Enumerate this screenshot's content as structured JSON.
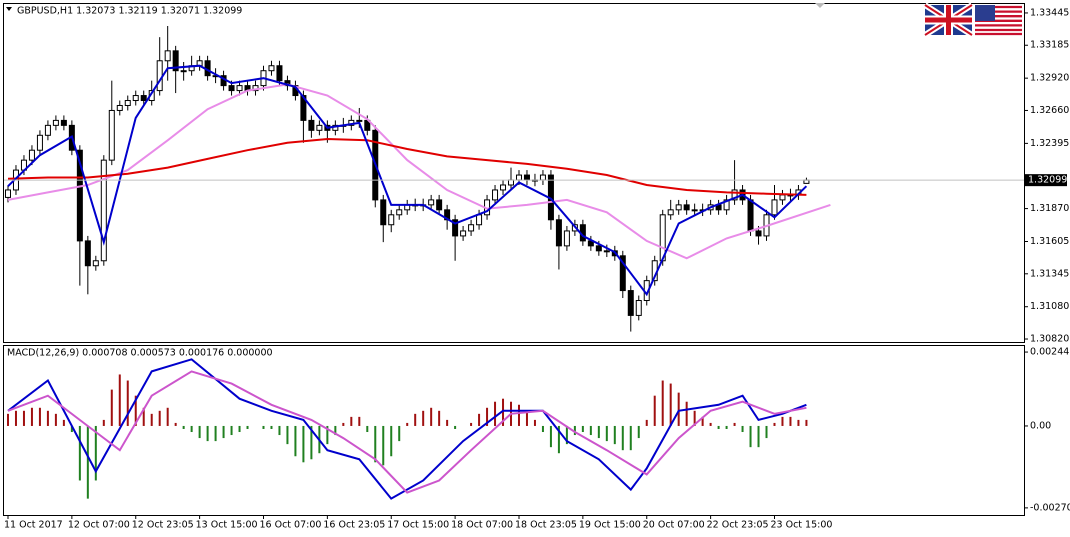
{
  "chart_data": [
    {
      "type": "candlestick",
      "title": "GBPUSD,H1  1.32073 1.32119 1.32071 1.32099",
      "categories": [
        "11 Oct 2017",
        null,
        null,
        null,
        null,
        null,
        null,
        null,
        "12 Oct 07:00",
        null,
        null,
        null,
        null,
        null,
        null,
        null,
        "12 Oct 23:05",
        null,
        null,
        null,
        null,
        null,
        null,
        null,
        "13 Oct 15:00",
        null,
        null,
        null,
        null,
        null,
        null,
        null,
        "16 Oct 07:00",
        null,
        null,
        null,
        null,
        null,
        null,
        null,
        "16 Oct 23:05",
        null,
        null,
        null,
        null,
        null,
        null,
        null,
        "17 Oct 15:00",
        null,
        null,
        null,
        null,
        null,
        null,
        null,
        "18 Oct 07:00",
        null,
        null,
        null,
        null,
        null,
        null,
        null,
        "18 Oct 23:05",
        null,
        null,
        null,
        null,
        null,
        null,
        null,
        "19 Oct 15:00",
        null,
        null,
        null,
        null,
        null,
        null,
        null,
        "20 Oct 07:00",
        null,
        null,
        null,
        null,
        null,
        null,
        null,
        "22 Oct 23:05",
        null,
        null,
        null,
        null,
        null,
        null,
        null,
        "23 Oct 15:00",
        null,
        null,
        null,
        null
      ],
      "open": [
        1.3196,
        1.3202,
        1.3218,
        1.3226,
        1.3234,
        1.3246,
        1.3254,
        1.3258,
        1.3254,
        1.3234,
        1.3161,
        1.3141,
        1.3145,
        1.3226,
        1.3266,
        1.327,
        1.3274,
        1.3278,
        1.3274,
        1.3282,
        1.3306,
        1.3314,
        1.3298,
        1.3298,
        1.3302,
        1.3306,
        1.3294,
        1.3294,
        1.3286,
        1.3282,
        1.3286,
        1.3282,
        1.3286,
        1.3298,
        1.3302,
        1.329,
        1.3286,
        1.3278,
        1.3258,
        1.325,
        1.3254,
        1.325,
        1.3254,
        1.3254,
        1.3258,
        1.3258,
        1.325,
        1.3194,
        1.3174,
        1.3182,
        1.3186,
        1.319,
        1.319,
        1.319,
        1.3194,
        1.3186,
        1.3178,
        1.3165,
        1.3169,
        1.3174,
        1.3182,
        1.3194,
        1.3202,
        1.3206,
        1.321,
        1.3214,
        1.321,
        1.321,
        1.3214,
        1.3178,
        1.3157,
        1.3169,
        1.3174,
        1.3161,
        1.3157,
        1.3153,
        1.3153,
        1.3149,
        1.3121,
        1.3101,
        1.3113,
        1.3129,
        1.3145,
        1.3182,
        1.3186,
        1.319,
        1.3186,
        1.3186,
        1.3186,
        1.319,
        1.3186,
        1.3194,
        1.3202,
        1.3194,
        1.3169,
        1.3165,
        1.3182,
        1.3194,
        1.3198,
        1.3198,
        1.32073
      ],
      "high": [
        1.3206,
        1.3222,
        1.323,
        1.3238,
        1.325,
        1.3258,
        1.3262,
        1.3262,
        1.3258,
        1.3238,
        1.3165,
        1.3149,
        1.323,
        1.329,
        1.3274,
        1.3278,
        1.3282,
        1.3282,
        1.329,
        1.3325,
        1.3334,
        1.3318,
        1.3305,
        1.331,
        1.331,
        1.331,
        1.33,
        1.3298,
        1.329,
        1.329,
        1.329,
        1.329,
        1.3302,
        1.3306,
        1.3306,
        1.3294,
        1.329,
        1.3282,
        1.3262,
        1.3258,
        1.3258,
        1.3258,
        1.326,
        1.3262,
        1.3268,
        1.3262,
        1.3254,
        1.3198,
        1.3186,
        1.319,
        1.3194,
        1.3195,
        1.3195,
        1.3198,
        1.3198,
        1.319,
        1.3182,
        1.3173,
        1.3178,
        1.3186,
        1.3198,
        1.3206,
        1.321,
        1.322,
        1.3218,
        1.3218,
        1.3215,
        1.3218,
        1.3218,
        1.3182,
        1.3173,
        1.3178,
        1.3178,
        1.3165,
        1.3161,
        1.3158,
        1.3157,
        1.3153,
        1.3125,
        1.3117,
        1.3133,
        1.3149,
        1.3186,
        1.3194,
        1.3194,
        1.3194,
        1.3191,
        1.3191,
        1.3194,
        1.3194,
        1.3198,
        1.3226,
        1.3206,
        1.3198,
        1.3173,
        1.3186,
        1.3206,
        1.3202,
        1.3203,
        1.3206,
        1.32119
      ],
      "low": [
        1.3192,
        1.3198,
        1.3214,
        1.3222,
        1.323,
        1.3242,
        1.325,
        1.325,
        1.323,
        1.3125,
        1.3118,
        1.3137,
        1.3141,
        1.3222,
        1.3262,
        1.3266,
        1.327,
        1.327,
        1.327,
        1.3278,
        1.329,
        1.328,
        1.329,
        1.3294,
        1.3298,
        1.329,
        1.3288,
        1.3282,
        1.3278,
        1.3278,
        1.3278,
        1.3278,
        1.3282,
        1.3294,
        1.3286,
        1.3282,
        1.3274,
        1.324,
        1.3244,
        1.3246,
        1.324,
        1.3246,
        1.3248,
        1.325,
        1.3252,
        1.3246,
        1.3188,
        1.316,
        1.3168,
        1.3178,
        1.3182,
        1.3185,
        1.3185,
        1.3186,
        1.3182,
        1.317,
        1.3145,
        1.3161,
        1.3165,
        1.317,
        1.3178,
        1.319,
        1.3198,
        1.3202,
        1.3206,
        1.3206,
        1.3205,
        1.3206,
        1.317,
        1.3138,
        1.3153,
        1.3165,
        1.3157,
        1.3153,
        1.3149,
        1.3148,
        1.3145,
        1.3115,
        1.3088,
        1.3097,
        1.3109,
        1.3125,
        1.3141,
        1.3178,
        1.3182,
        1.3182,
        1.3181,
        1.3181,
        1.3182,
        1.3182,
        1.3182,
        1.319,
        1.319,
        1.3165,
        1.3158,
        1.3161,
        1.3178,
        1.319,
        1.3193,
        1.3194,
        1.32071
      ],
      "close": [
        1.3202,
        1.3218,
        1.3226,
        1.3234,
        1.3246,
        1.3254,
        1.3258,
        1.3254,
        1.3234,
        1.3161,
        1.3141,
        1.3145,
        1.3226,
        1.3266,
        1.327,
        1.3274,
        1.3278,
        1.3274,
        1.3282,
        1.3306,
        1.3314,
        1.3298,
        1.3298,
        1.3302,
        1.3306,
        1.3294,
        1.3294,
        1.3286,
        1.3282,
        1.3286,
        1.3282,
        1.3286,
        1.3298,
        1.3302,
        1.329,
        1.3286,
        1.3278,
        1.3258,
        1.325,
        1.3254,
        1.325,
        1.3254,
        1.3254,
        1.3258,
        1.3258,
        1.325,
        1.3194,
        1.3174,
        1.3182,
        1.3186,
        1.319,
        1.319,
        1.319,
        1.3194,
        1.3186,
        1.3178,
        1.3165,
        1.3169,
        1.3174,
        1.3182,
        1.3194,
        1.3202,
        1.3206,
        1.321,
        1.3214,
        1.321,
        1.321,
        1.3214,
        1.3178,
        1.3157,
        1.3169,
        1.3174,
        1.3161,
        1.3157,
        1.3153,
        1.3153,
        1.3149,
        1.3121,
        1.3101,
        1.3113,
        1.3129,
        1.3145,
        1.3182,
        1.3186,
        1.319,
        1.3186,
        1.3186,
        1.3186,
        1.319,
        1.3186,
        1.3194,
        1.3202,
        1.3194,
        1.3169,
        1.3165,
        1.3182,
        1.3194,
        1.3198,
        1.3198,
        1.3202,
        1.32099
      ],
      "bull_color": "#ffffff",
      "bear_color": "#000000",
      "lines": [
        {
          "color": "#e88ce8",
          "x": [
            0,
            5,
            10,
            15,
            20,
            25,
            30,
            35,
            40,
            45,
            50,
            55,
            60,
            65,
            70,
            75,
            80,
            85,
            90,
            95,
            103
          ],
          "values": [
            1.3194,
            1.32,
            1.3206,
            1.3218,
            1.3242,
            1.3267,
            1.3282,
            1.3287,
            1.3278,
            1.3259,
            1.3226,
            1.3202,
            1.3187,
            1.319,
            1.3194,
            1.3184,
            1.3161,
            1.3147,
            1.3163,
            1.3173,
            1.319
          ]
        },
        {
          "color": "#e00000",
          "x": [
            0,
            5,
            10,
            15,
            20,
            25,
            30,
            35,
            40,
            45,
            50,
            55,
            60,
            65,
            70,
            75,
            80,
            85,
            90,
            95,
            100
          ],
          "values": [
            1.3211,
            1.3212,
            1.3212,
            1.3215,
            1.322,
            1.3227,
            1.3234,
            1.324,
            1.3243,
            1.3242,
            1.3235,
            1.3229,
            1.3226,
            1.3223,
            1.3219,
            1.3214,
            1.3206,
            1.3202,
            1.32,
            1.3199,
            1.3198
          ]
        },
        {
          "color": "#0000cc",
          "x": [
            0,
            4,
            8,
            12,
            16,
            20,
            24,
            28,
            32,
            36,
            40,
            44,
            48,
            52,
            56,
            60,
            64,
            68,
            72,
            76,
            80,
            84,
            88,
            92,
            96,
            100
          ],
          "values": [
            1.3205,
            1.323,
            1.3245,
            1.316,
            1.326,
            1.33,
            1.3302,
            1.3288,
            1.3292,
            1.3285,
            1.3252,
            1.3256,
            1.319,
            1.319,
            1.3175,
            1.3185,
            1.3208,
            1.3195,
            1.3165,
            1.3152,
            1.3118,
            1.3175,
            1.3188,
            1.3198,
            1.318,
            1.3205
          ]
        }
      ],
      "last_price": 1.32099,
      "xlim": [
        -0.5,
        127.25
      ],
      "ylim": [
        1.30796,
        1.33517
      ],
      "yticks": [
        1.33445,
        1.33185,
        {
          "value": 1.3292,
          "label": "1.32920"
        },
        {
          "value": 1.3266,
          "label": "1.32660"
        },
        1.32395,
        {
          "value": 1.3187,
          "label": "1.31870"
        },
        1.31605,
        1.31345,
        {
          "value": 1.3108,
          "label": "1.31080"
        },
        {
          "value": 1.3082,
          "label": "1.30820"
        }
      ]
    },
    {
      "type": "bar",
      "title": "MACD(12,26,9) 0.000708 0.000573 0.000176 0.000000",
      "values": [
        0.0004,
        0.0005,
        0.0005,
        0.0006,
        0.0006,
        0.0005,
        0.0004,
        0.0002,
        -0.0002,
        -0.0018,
        -0.0024,
        -0.0018,
        0.0002,
        0.0012,
        0.0017,
        0.0015,
        0.001,
        0.0006,
        0.0004,
        0.0005,
        0.0006,
        0.0001,
        -0.0001,
        -0.0002,
        -0.0004,
        -0.0005,
        -0.0005,
        -0.0004,
        -0.0003,
        -0.0002,
        -0.0001,
        0,
        -0.0001,
        -0.0001,
        -0.0003,
        -0.0006,
        -0.001,
        -0.0012,
        -0.0011,
        -0.0009,
        -0.0006,
        -0.0003,
        0.0001,
        0.0003,
        0.0003,
        -0.0002,
        -0.0012,
        -0.0013,
        -0.001,
        -0.0005,
        0.0001,
        0.0004,
        0.0005,
        0.0006,
        0.0005,
        0.0002,
        -0.0001,
        0,
        0.0001,
        0.0004,
        0.0006,
        0.0008,
        0.0009,
        0.0008,
        0.0007,
        0.0005,
        0.0002,
        -0.0002,
        -0.0007,
        -0.0009,
        -0.0006,
        -0.0003,
        -0.0002,
        -0.0003,
        -0.0004,
        -0.0005,
        -0.0006,
        -0.0008,
        -0.0008,
        -0.0004,
        0.0002,
        0.001,
        0.0015,
        0.0014,
        0.0011,
        0.0008,
        0.0005,
        0.0003,
        0.0001,
        -0.0001,
        -0.0001,
        0.0001,
        -0.0002,
        -0.0007,
        -0.0007,
        -0.0004,
        0.0001,
        0.0003,
        0.0003,
        0.0002,
        0.0002
      ],
      "up_color": "#a01010",
      "down_color": "#208020",
      "lines": [
        {
          "color": "#0000cc",
          "x": [
            0,
            5,
            11,
            18,
            23,
            29,
            33,
            37,
            40,
            44,
            48,
            52,
            57,
            62,
            67,
            70,
            74,
            78,
            80,
            84,
            89,
            92,
            94,
            97,
            100
          ],
          "values": [
            0.0005,
            0.0015,
            -0.0015,
            0.0018,
            0.0022,
            0.0009,
            0.0005,
            0.0002,
            -0.0008,
            -0.0011,
            -0.0024,
            -0.0018,
            -0.0005,
            0.0005,
            0.0005,
            -0.0005,
            -0.0011,
            -0.0021,
            -0.0014,
            0.0005,
            0.0007,
            0.001,
            0.0002,
            0.0004,
            0.0007
          ]
        },
        {
          "color": "#cc55cc",
          "x": [
            0,
            5,
            10,
            14,
            18,
            23,
            28,
            33,
            38,
            42,
            46,
            50,
            54,
            58,
            63,
            67,
            71,
            75,
            80,
            84,
            88,
            92,
            96,
            100
          ],
          "values": [
            0.0005,
            0.001,
            0,
            -0.0008,
            0.001,
            0.0018,
            0.0014,
            0.0007,
            0.0002,
            -0.0004,
            -0.0011,
            -0.0022,
            -0.0018,
            -0.0008,
            0.0004,
            0.0005,
            -0.0002,
            -0.0008,
            -0.0016,
            -0.0004,
            0.0005,
            0.0008,
            0.0004,
            0.0006
          ]
        }
      ],
      "ylim": [
        -0.00294,
        0.00264
      ],
      "yticks": [
        0.00244,
        {
          "value": 0,
          "label": "0.00"
        },
        -0.002705
      ]
    }
  ]
}
